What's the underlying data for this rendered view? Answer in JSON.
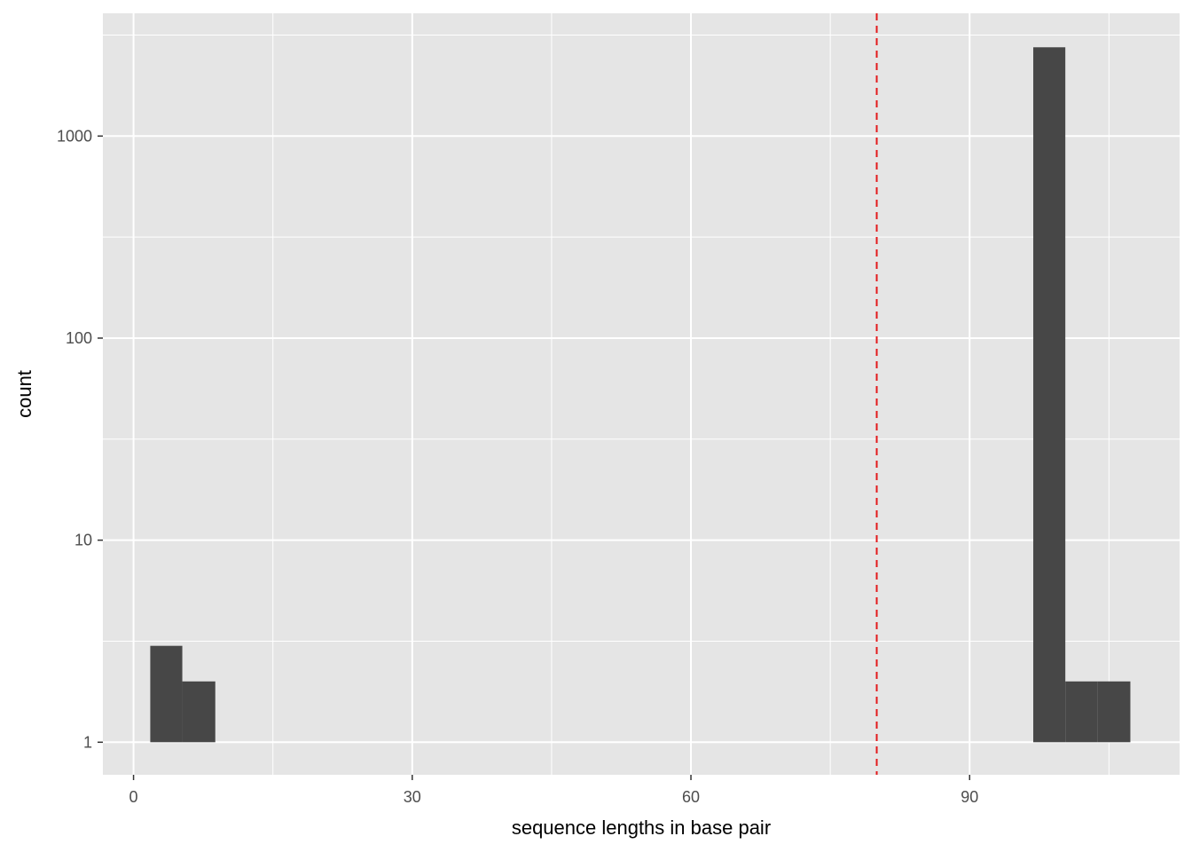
{
  "chart_data": {
    "type": "bar",
    "subtype": "histogram",
    "xlabel": "sequence lengths in base pair",
    "ylabel": "count",
    "y_scale": "log10",
    "xlim": [
      -3.3,
      112.6
    ],
    "ylim": [
      0.69,
      4050
    ],
    "x_ticks": [
      0,
      30,
      60,
      90
    ],
    "x_minor_ticks": [
      15,
      45,
      75,
      105
    ],
    "y_ticks": [
      1,
      10,
      100,
      1000
    ],
    "y_tick_labels": [
      "1",
      "10",
      "100",
      "1000"
    ],
    "grid": true,
    "bins": [
      {
        "x0": 1.8,
        "x1": 5.25,
        "count": 3
      },
      {
        "x0": 5.25,
        "x1": 8.8,
        "count": 2
      },
      {
        "x0": 96.85,
        "x1": 100.3,
        "count": 2750
      },
      {
        "x0": 100.3,
        "x1": 103.8,
        "count": 2
      },
      {
        "x0": 103.8,
        "x1": 107.3,
        "count": 2
      }
    ],
    "vline": {
      "x": 80,
      "color": "#e31a1c",
      "style": "dashed"
    },
    "colors": {
      "bar": "#474747",
      "panel": "#e5e5e5",
      "grid": "#ffffff"
    }
  }
}
